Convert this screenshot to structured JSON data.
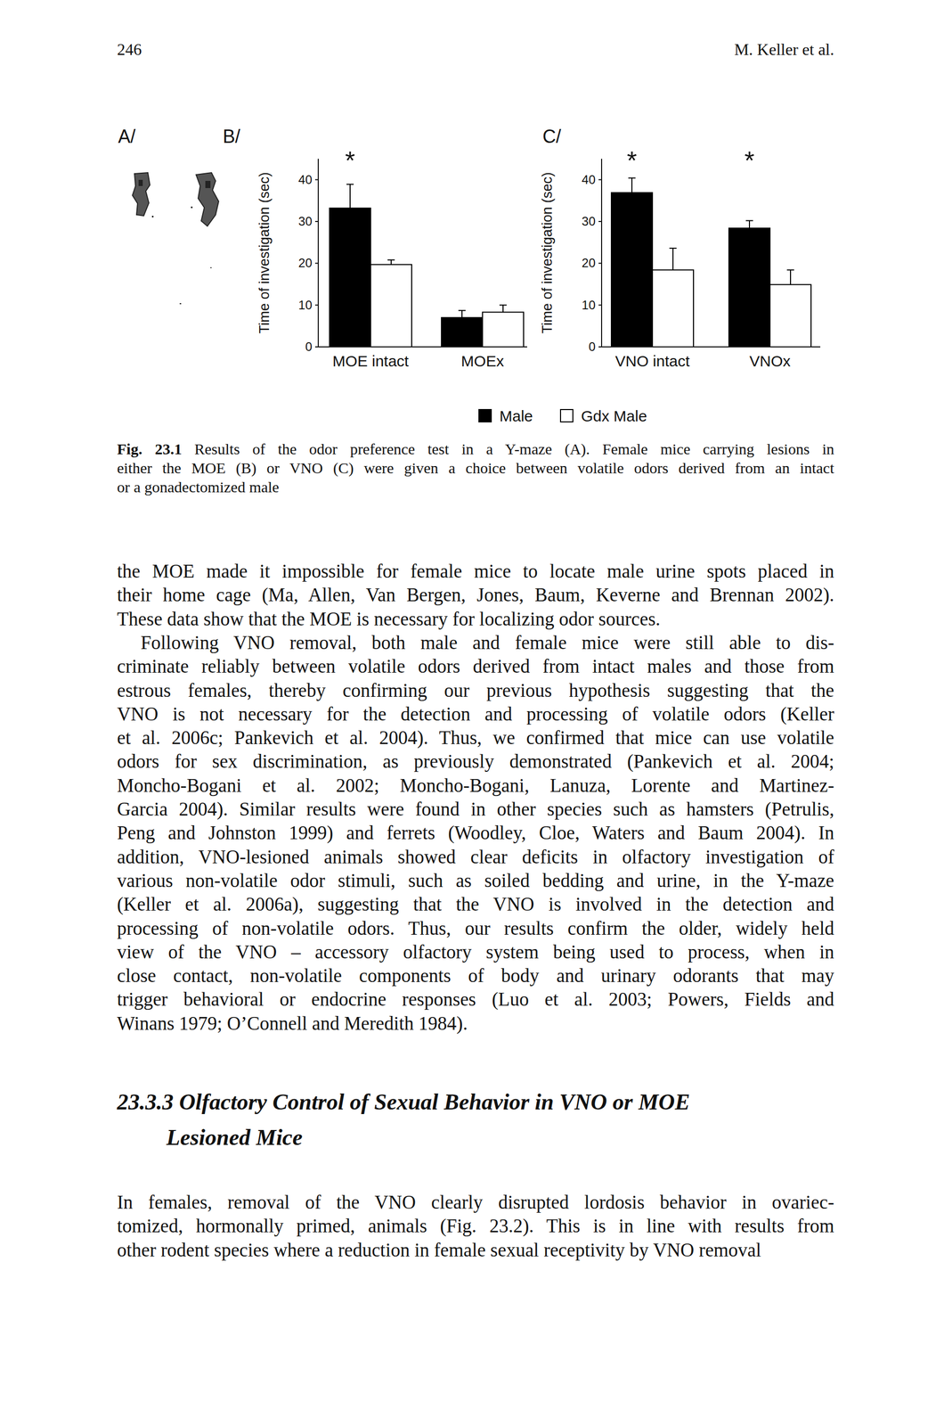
{
  "header": {
    "page_number": "246",
    "running_head": "M. Keller et al."
  },
  "figure": {
    "panel_labels": [
      "A/",
      "B/",
      "C/"
    ],
    "caption": {
      "label": "Fig. 23.1",
      "lines": [
        "Results of the odor preference test in a Y-maze (A). Female mice carrying lesions in",
        "either the MOE (B) or VNO (C) were given a choice between volatile odors derived from an intact",
        "or a gonadectomized male"
      ]
    }
  },
  "chart_data": [
    {
      "type": "bar",
      "y_label": "Time of investigation (sec)",
      "categories": [
        "MOE intact",
        "MOEx"
      ],
      "series": [
        {
          "name": "Male",
          "color": "#000000",
          "values": [
            33.2,
            7.0
          ],
          "errors": [
            5.7,
            1.7
          ]
        },
        {
          "name": "Gdx Male",
          "color": "#ffffff",
          "values": [
            19.7,
            8.3
          ],
          "errors": [
            1.1,
            1.7
          ]
        }
      ],
      "ylim": [
        0,
        45
      ],
      "yticks": [
        0,
        10,
        20,
        30,
        40
      ],
      "legend": "bottom",
      "annotations": [
        {
          "text": "*",
          "category": 0
        }
      ]
    },
    {
      "type": "bar",
      "y_label": "Time of investigation (sec)",
      "categories": [
        "VNO intact",
        "VNOx"
      ],
      "series": [
        {
          "name": "Male",
          "color": "#000000",
          "values": [
            36.9,
            28.4
          ],
          "errors": [
            3.5,
            1.8
          ]
        },
        {
          "name": "Gdx Male",
          "color": "#ffffff",
          "values": [
            18.4,
            14.9
          ],
          "errors": [
            5.2,
            3.5
          ]
        }
      ],
      "ylim": [
        0,
        45
      ],
      "yticks": [
        0,
        10,
        20,
        30,
        40
      ],
      "annotations": [
        {
          "text": "*",
          "category": 0
        },
        {
          "text": "*",
          "category": 1
        }
      ]
    }
  ],
  "body": [
    {
      "paragraphs": [
        {
          "lines": [
            "the MOE made it impossible for female mice to locate male urine spots placed in",
            "their home cage (Ma, Allen, Van Bergen, Jones, Baum, Keverne and Brennan 2002).",
            "These data show that the MOE is necessary for localizing odor sources."
          ]
        },
        {
          "lines": [
            "Following VNO removal, both male and female mice were still able to dis-",
            "criminate reliably between volatile odors derived from intact males and those from",
            "estrous females, thereby confirming our previous hypothesis suggesting that the",
            "VNO is not necessary for the detection and processing of volatile odors (Keller",
            "et al. 2006c; Pankevich et al. 2004). Thus, we confirmed that mice can use volatile",
            "odors for sex discrimination, as previously demonstrated (Pankevich et al. 2004;",
            "Moncho-Bogani et al. 2002; Moncho-Bogani, Lanuza, Lorente and Martinez-",
            "Garcia 2004). Similar results were found in other species such as hamsters (Petrulis,",
            "Peng and Johnston 1999) and ferrets (Woodley, Cloe, Waters and Baum 2004). In",
            "addition, VNO-lesioned animals showed clear deficits in olfactory investigation of",
            "various non-volatile odor stimuli, such as soiled bedding and urine, in the Y-maze",
            "(Keller et al. 2006a), suggesting that the VNO is involved in the detection and",
            "processing of non-volatile odors. Thus, our results confirm the older, widely held",
            "view of the VNO – accessory olfactory system being used to process, when in",
            "close contact, non-volatile components of body and urinary odorants that may",
            "trigger behavioral or endocrine responses (Luo et al. 2003; Powers, Fields and",
            "Winans 1979; O’Connell and Meredith 1984)."
          ]
        }
      ]
    },
    {
      "heading": [
        "23.3.3 Olfactory Control of Sexual Behavior in VNO or MOE",
        "Lesioned Mice"
      ],
      "paragraphs": [
        {
          "lines": [
            "In females, removal of the VNO clearly disrupted lordosis behavior in ovariec-",
            "tomized, hormonally primed, animals (Fig. 23.2). This is in line with results from",
            "other rodent species where a reduction in female sexual receptivity by VNO removal"
          ]
        }
      ]
    }
  ]
}
